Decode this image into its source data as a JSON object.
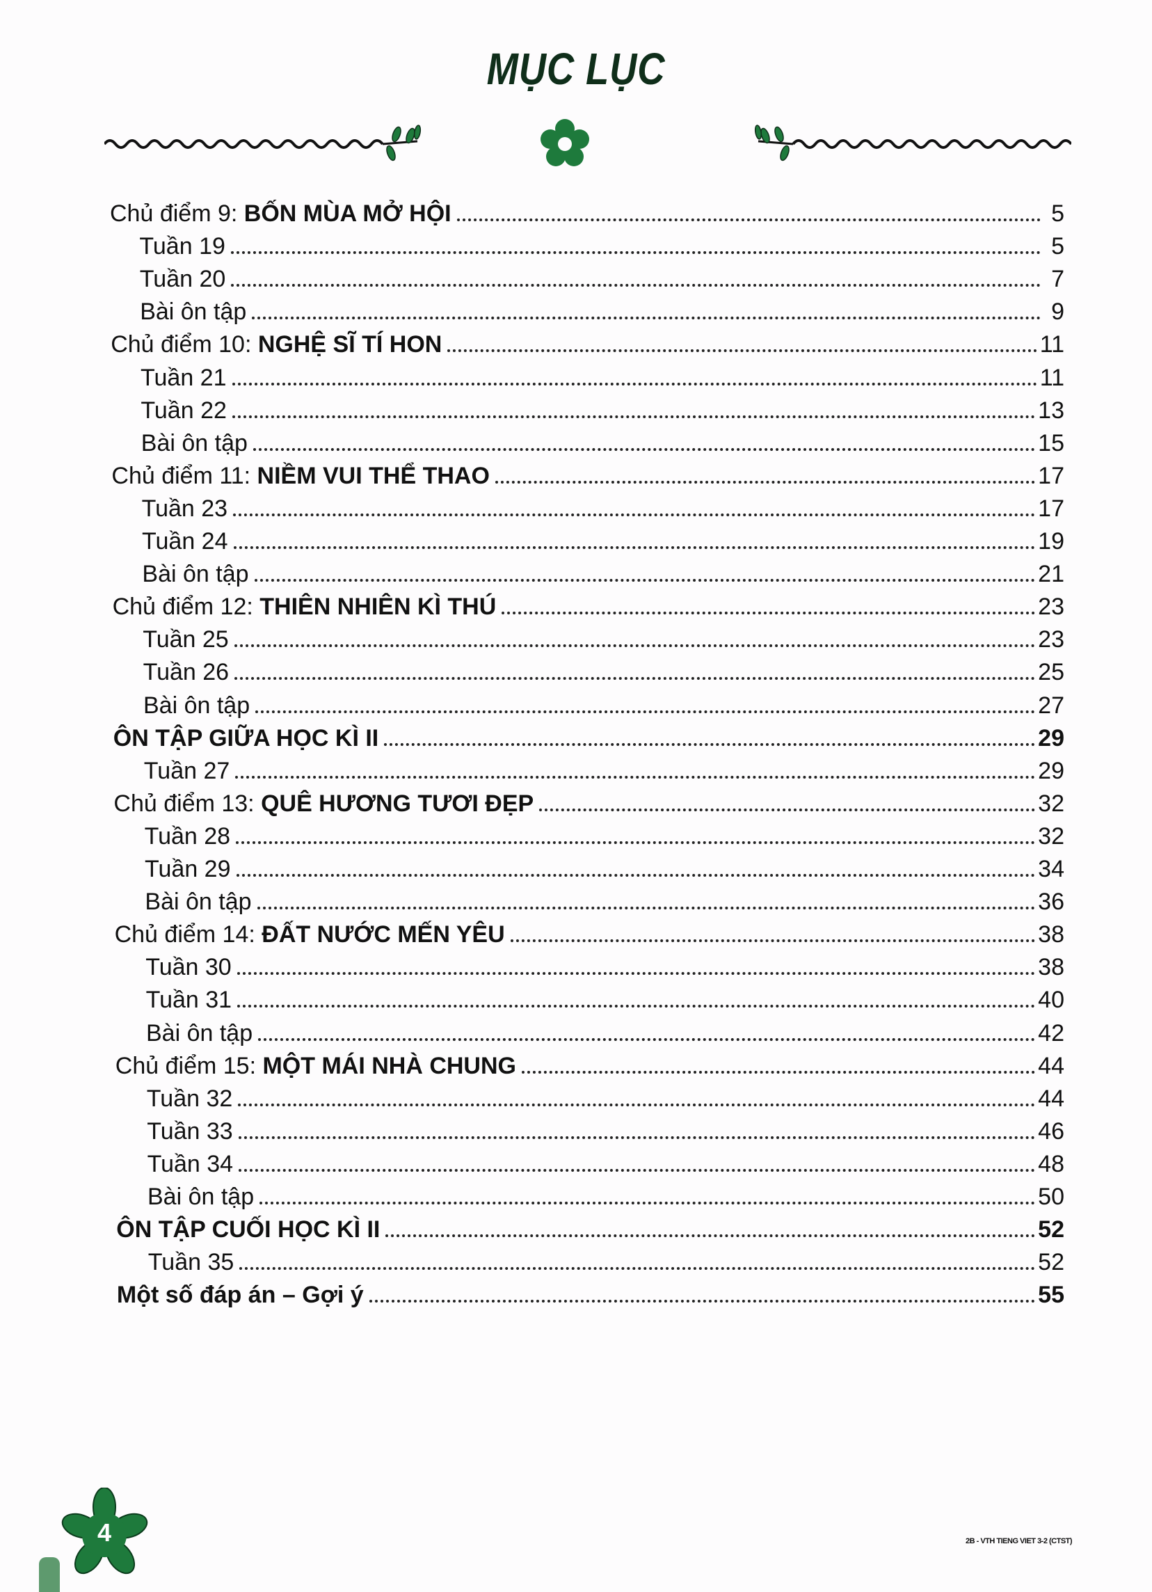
{
  "title": "MỤC LỤC",
  "accent_color": "#1e7a3c",
  "entries": [
    {
      "type": "topic",
      "prefix": "Chủ điểm 9: ",
      "name": "BỐN MÙA MỞ HỘI",
      "page": "5"
    },
    {
      "type": "sub",
      "prefix": "Tuần 19",
      "page": "5"
    },
    {
      "type": "sub",
      "prefix": "Tuần 20",
      "page": "7"
    },
    {
      "type": "sub",
      "prefix": "Bài ôn tập",
      "page": "9"
    },
    {
      "type": "topic",
      "prefix": "Chủ điểm 10: ",
      "name": "NGHỆ SĨ TÍ HON",
      "page": "11"
    },
    {
      "type": "sub",
      "prefix": "Tuần 21",
      "page": "11"
    },
    {
      "type": "sub",
      "prefix": "Tuần 22",
      "page": "13"
    },
    {
      "type": "sub",
      "prefix": "Bài ôn tập",
      "page": "15"
    },
    {
      "type": "topic",
      "prefix": "Chủ điểm 11: ",
      "name": "NIỀM VUI THỂ THAO",
      "page": "17"
    },
    {
      "type": "sub",
      "prefix": "Tuần 23",
      "page": "17"
    },
    {
      "type": "sub",
      "prefix": "Tuần 24",
      "page": "19"
    },
    {
      "type": "sub",
      "prefix": "Bài ôn tập",
      "page": "21"
    },
    {
      "type": "topic",
      "prefix": "Chủ điểm 12: ",
      "name": "THIÊN NHIÊN KÌ THÚ",
      "page": "23"
    },
    {
      "type": "sub",
      "prefix": "Tuần 25",
      "page": "23"
    },
    {
      "type": "sub",
      "prefix": "Tuần 26",
      "page": "25"
    },
    {
      "type": "sub",
      "prefix": "Bài ôn tập",
      "page": "27"
    },
    {
      "type": "bold",
      "prefix": "ÔN TẬP GIỮA HỌC KÌ II",
      "page": "29"
    },
    {
      "type": "sub",
      "prefix": "Tuần 27",
      "page": "29"
    },
    {
      "type": "topic",
      "prefix": "Chủ điểm 13: ",
      "name": "QUÊ HƯƠNG TƯƠI ĐẸP",
      "page": "32"
    },
    {
      "type": "sub",
      "prefix": "Tuần 28",
      "page": "32"
    },
    {
      "type": "sub",
      "prefix": "Tuần 29",
      "page": "34"
    },
    {
      "type": "sub",
      "prefix": "Bài ôn tập",
      "page": "36"
    },
    {
      "type": "topic",
      "prefix": "Chủ điểm 14: ",
      "name": "ĐẤT NƯỚC MẾN YÊU",
      "page": "38"
    },
    {
      "type": "sub",
      "prefix": "Tuần 30",
      "page": "38"
    },
    {
      "type": "sub",
      "prefix": "Tuần 31",
      "page": "40"
    },
    {
      "type": "sub",
      "prefix": "Bài ôn tập",
      "page": "42"
    },
    {
      "type": "topic",
      "prefix": "Chủ điểm 15: ",
      "name": "MỘT MÁI NHÀ CHUNG",
      "page": "44"
    },
    {
      "type": "sub",
      "prefix": "Tuần 32",
      "page": "44"
    },
    {
      "type": "sub",
      "prefix": "Tuần 33",
      "page": "46"
    },
    {
      "type": "sub",
      "prefix": "Tuần 34",
      "page": "48"
    },
    {
      "type": "sub",
      "prefix": "Bài ôn tập",
      "page": "50"
    },
    {
      "type": "bold",
      "prefix": "ÔN TẬP CUỐI HỌC KÌ II",
      "page": "52"
    },
    {
      "type": "sub",
      "prefix": "Tuần 35",
      "page": "52"
    },
    {
      "type": "bold",
      "prefix": "Một số đáp án – Gợi ý",
      "page": "55"
    }
  ],
  "page_number": "4",
  "footer": "2B - VTH TIENG VIET 3-2 (CTST)"
}
